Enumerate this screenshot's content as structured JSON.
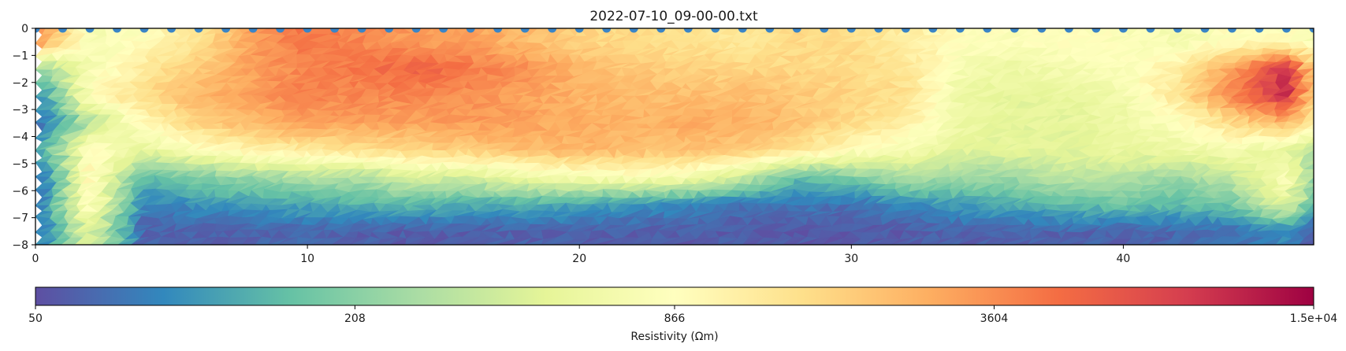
{
  "chart_data": {
    "type": "heatmap",
    "title": "2022-07-10_09-00-00.txt",
    "xlabel": "",
    "ylabel": "",
    "xlim": [
      0,
      47
    ],
    "ylim": [
      -8,
      0
    ],
    "x_ticks": [
      "0",
      "10",
      "20",
      "30",
      "40"
    ],
    "x_tick_values": [
      0,
      10,
      20,
      30,
      40
    ],
    "y_ticks": [
      "0",
      "−1",
      "−2",
      "−3",
      "−4",
      "−5",
      "−6",
      "−7",
      "−8"
    ],
    "y_tick_values": [
      0,
      -1,
      -2,
      -3,
      -4,
      -5,
      -6,
      -7,
      -8
    ],
    "colormap": "Spectral_r",
    "color_scale": "log",
    "colorbar": {
      "label": "Resistivity (Ωm)",
      "min": 50,
      "max": 15000,
      "ticks": [
        "50",
        "208",
        "866",
        "3604",
        "1.5e+04"
      ],
      "tick_values": [
        50,
        208,
        866,
        3604,
        15000
      ]
    },
    "electrodes": {
      "color": "#3a85c6",
      "x": [
        0,
        1,
        2,
        3,
        4,
        5,
        6,
        7,
        8,
        9,
        10,
        11,
        12,
        13,
        14,
        15,
        16,
        17,
        18,
        19,
        20,
        21,
        22,
        23,
        24,
        25,
        26,
        27,
        28,
        29,
        30,
        31,
        32,
        33,
        34,
        35,
        36,
        37,
        38,
        39,
        40,
        41,
        42,
        43,
        44,
        45,
        46,
        47
      ],
      "y": 0
    },
    "resistivity_rows": {
      "x": [
        0,
        2,
        4,
        6,
        8,
        10,
        12,
        14,
        16,
        18,
        20,
        22,
        24,
        26,
        28,
        30,
        32,
        34,
        36,
        38,
        40,
        42,
        44,
        46,
        47
      ],
      "depth": [
        -0.5,
        -1.5,
        -2.5,
        -3.5,
        -4.5,
        -5.5,
        -6.5,
        -7.5
      ],
      "values": [
        [
          4000,
          700,
          900,
          1400,
          3200,
          4500,
          3800,
          3200,
          3000,
          2400,
          1800,
          1600,
          1500,
          1300,
          1600,
          1600,
          1200,
          900,
          800,
          900,
          800,
          700,
          900,
          900,
          700
        ],
        [
          200,
          700,
          1300,
          2000,
          3000,
          4000,
          4500,
          5500,
          4300,
          3500,
          2500,
          2000,
          1800,
          1800,
          1700,
          1600,
          1400,
          700,
          600,
          700,
          800,
          1200,
          3000,
          10000,
          2000
        ],
        [
          70,
          900,
          1600,
          2400,
          3200,
          4000,
          3800,
          3800,
          3500,
          3000,
          2600,
          2300,
          2300,
          2300,
          2000,
          1800,
          1500,
          600,
          500,
          550,
          650,
          1400,
          4000,
          10000,
          2000
        ],
        [
          60,
          300,
          1000,
          1800,
          2400,
          3000,
          3000,
          3000,
          3200,
          3000,
          2700,
          2500,
          2700,
          2700,
          2200,
          1600,
          1200,
          600,
          500,
          500,
          600,
          800,
          1600,
          2500,
          1200
        ],
        [
          100,
          1000,
          500,
          800,
          1100,
          1300,
          1500,
          1700,
          2000,
          2200,
          2500,
          2300,
          2200,
          2000,
          1400,
          900,
          700,
          500,
          500,
          500,
          550,
          600,
          700,
          500,
          300
        ],
        [
          50,
          1000,
          150,
          200,
          250,
          300,
          300,
          450,
          400,
          600,
          700,
          800,
          700,
          400,
          150,
          200,
          300,
          250,
          250,
          350,
          300,
          250,
          350,
          800,
          250
        ],
        [
          60,
          1000,
          80,
          100,
          110,
          120,
          140,
          150,
          130,
          130,
          120,
          100,
          90,
          70,
          80,
          70,
          90,
          110,
          130,
          150,
          170,
          150,
          180,
          500,
          150
        ],
        [
          65,
          500,
          60,
          60,
          62,
          65,
          60,
          58,
          58,
          60,
          60,
          58,
          58,
          57,
          55,
          55,
          58,
          60,
          60,
          62,
          62,
          65,
          70,
          90,
          60
        ]
      ]
    }
  }
}
